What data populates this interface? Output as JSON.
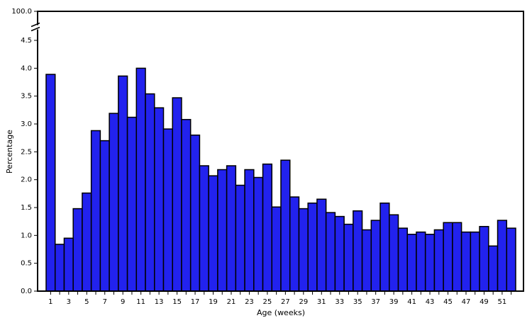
{
  "chart_data": {
    "type": "bar",
    "x_label": "Age (weeks)",
    "y_label": "Percentage",
    "color": "#2222ee",
    "categories": [
      "1",
      null,
      "3",
      null,
      "5",
      null,
      "7",
      null,
      "9",
      null,
      "11",
      null,
      "13",
      null,
      "15",
      null,
      "17",
      null,
      "19",
      null,
      "21",
      null,
      "23",
      null,
      "25",
      null,
      "27",
      null,
      "29",
      null,
      "31",
      null,
      "33",
      null,
      "35",
      null,
      "37",
      null,
      "39",
      null,
      "41",
      null,
      "43",
      null,
      "45",
      null,
      "47",
      null,
      "49",
      null,
      "51",
      null
    ],
    "values": [
      3.89,
      0.84,
      0.95,
      1.48,
      1.76,
      2.88,
      2.7,
      3.19,
      3.86,
      3.12,
      4.0,
      3.54,
      3.29,
      2.91,
      3.47,
      3.08,
      2.8,
      2.25,
      2.07,
      2.18,
      2.25,
      1.9,
      2.18,
      2.04,
      2.28,
      1.51,
      2.35,
      1.69,
      1.48,
      1.58,
      1.65,
      1.41,
      1.34,
      1.2,
      1.44,
      1.1,
      1.27,
      1.58,
      1.37,
      1.13,
      1.02,
      1.06,
      1.02,
      1.1,
      1.23,
      1.23,
      1.06,
      1.06,
      1.16,
      0.81,
      1.27,
      1.13
    ],
    "ylim": [
      0,
      100
    ],
    "axis_break": true,
    "yticks": [
      {
        "value": 0,
        "label": "0.0"
      },
      0.5,
      {
        "value": 1,
        "label": "1.0"
      },
      1.5,
      {
        "value": 2,
        "label": "2.0"
      },
      2.5,
      {
        "value": 3,
        "label": "3.0"
      },
      3.5,
      {
        "value": 4,
        "label": "4.0"
      },
      4.5,
      {
        "value": 100,
        "label": "100.0"
      }
    ]
  }
}
